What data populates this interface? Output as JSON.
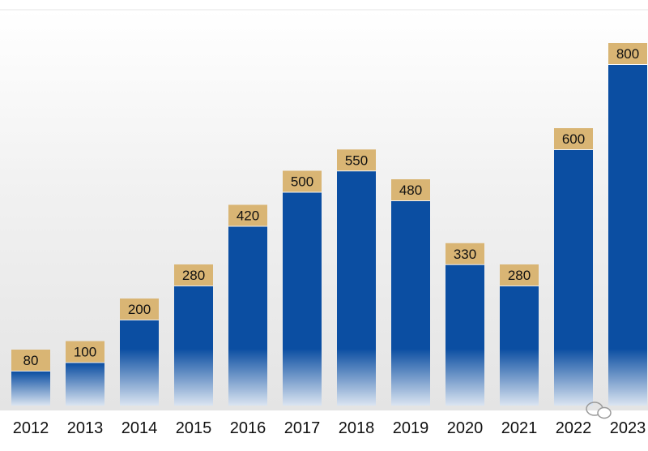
{
  "chart_data": {
    "type": "bar",
    "title": "",
    "xlabel": "",
    "ylabel": "",
    "categories": [
      "2012",
      "2013",
      "2014",
      "2015",
      "2016",
      "2017",
      "2018",
      "2019",
      "2020",
      "2021",
      "2022",
      "2023"
    ],
    "values": [
      80,
      100,
      200,
      280,
      420,
      500,
      550,
      480,
      330,
      280,
      600,
      800
    ],
    "ylim": [
      0,
      800
    ],
    "grid": false,
    "legend": "none",
    "bar_color": "#0b4ea2",
    "label_box_color": "#d9b574"
  }
}
